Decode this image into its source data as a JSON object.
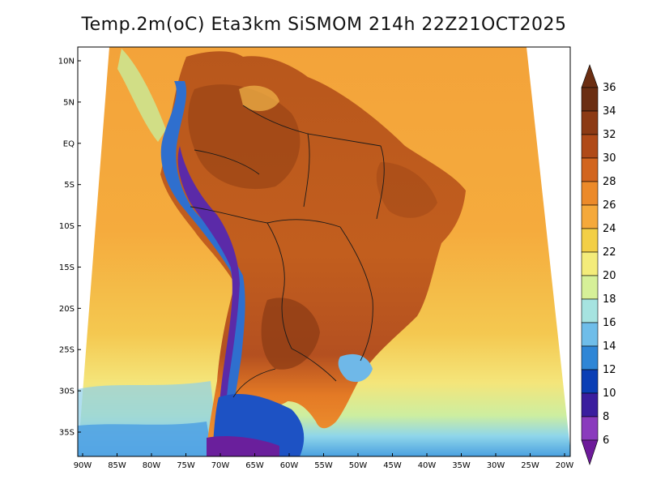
{
  "title": "Temp.2m(oC) Eta3km SiSMOM 214h 22Z21OCT2025",
  "map": {
    "lat_labels": [
      "10N",
      "5N",
      "EQ",
      "5S",
      "10S",
      "15S",
      "20S",
      "25S",
      "30S",
      "35S"
    ],
    "lon_labels": [
      "90W",
      "85W",
      "80W",
      "75W",
      "70W",
      "65W",
      "60W",
      "55W",
      "50W",
      "45W",
      "40W",
      "35W",
      "30W",
      "25W",
      "20W"
    ],
    "lat_values": [
      10,
      5,
      0,
      -5,
      -10,
      -15,
      -20,
      -25,
      -30,
      -35
    ],
    "lon_values": [
      -90,
      -85,
      -80,
      -75,
      -70,
      -65,
      -60,
      -55,
      -50,
      -45,
      -40,
      -35,
      -30,
      -25,
      -20
    ]
  },
  "colorbar": {
    "labels": [
      "36",
      "34",
      "32",
      "30",
      "28",
      "26",
      "24",
      "22",
      "20",
      "18",
      "16",
      "14",
      "12",
      "10",
      "8",
      "6"
    ],
    "colors": [
      "#6b2e12",
      "#8c3a14",
      "#b04a18",
      "#d2651f",
      "#ec8a2a",
      "#f5a93b",
      "#f3cf46",
      "#f4ec7a",
      "#d6f098",
      "#a6e3e0",
      "#6fbde9",
      "#2f86d6",
      "#0b3fb5",
      "#3a1e9e",
      "#8a3bbd",
      "#6d1a9a"
    ]
  }
}
